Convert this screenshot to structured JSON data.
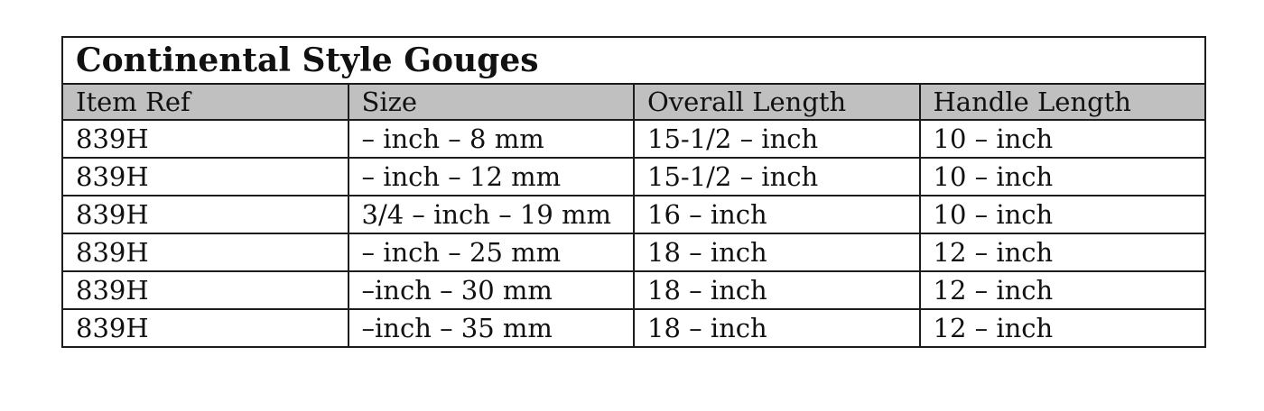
{
  "table": {
    "title": "Continental Style Gouges",
    "columns": [
      "Item Ref",
      "Size",
      "Overall Length",
      "Handle Length"
    ],
    "rows": [
      [
        "839H",
        "– inch – 8 mm",
        "15-1/2 – inch",
        "10 – inch"
      ],
      [
        "839H",
        "– inch – 12 mm",
        "15-1/2 – inch",
        "10 – inch"
      ],
      [
        "839H",
        "3/4 – inch – 19 mm",
        "16 – inch",
        "10 – inch"
      ],
      [
        "839H",
        "– inch – 25 mm",
        "18 – inch",
        "12 – inch"
      ],
      [
        "839H",
        "–inch – 30 mm",
        "18 – inch",
        "12 – inch"
      ],
      [
        "839H",
        "–inch – 35 mm",
        "18 – inch",
        "12 – inch"
      ]
    ],
    "colors": {
      "header_background": "#c0c0c0",
      "border": "#1c1c1c",
      "text": "#111111",
      "page_background": "#ffffff"
    }
  }
}
